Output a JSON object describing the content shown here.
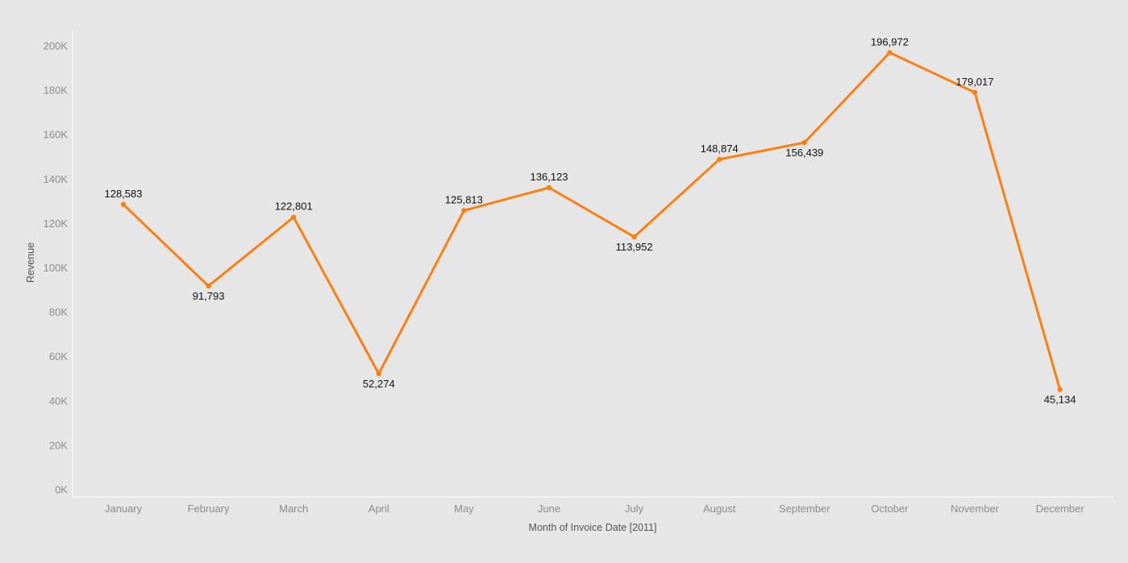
{
  "chart_data": {
    "type": "line",
    "title": "",
    "xlabel": "Month of Invoice Date [2011]",
    "ylabel": "Revenue",
    "categories": [
      "January",
      "February",
      "March",
      "April",
      "May",
      "June",
      "July",
      "August",
      "September",
      "October",
      "November",
      "December"
    ],
    "series": [
      {
        "values": [
          128583,
          91793,
          122801,
          52274,
          125813,
          136123,
          113952,
          148874,
          156439,
          196972,
          179017,
          45134
        ],
        "labels": [
          "128,583",
          "91,793",
          "122,801",
          "52,274",
          "125,813",
          "136,123",
          "113,952",
          "148,874",
          "156,439",
          "196,972",
          "179,017",
          "45,134"
        ],
        "label_positions": [
          "above",
          "below",
          "above",
          "below",
          "above",
          "above",
          "below",
          "above",
          "below",
          "above",
          "above",
          "below"
        ],
        "color": "#ff7f0e"
      }
    ],
    "yticks": [
      {
        "value": 0,
        "label": "0K"
      },
      {
        "value": 20000,
        "label": "20K"
      },
      {
        "value": 40000,
        "label": "40K"
      },
      {
        "value": 60000,
        "label": "60K"
      },
      {
        "value": 80000,
        "label": "80K"
      },
      {
        "value": 100000,
        "label": "100K"
      },
      {
        "value": 120000,
        "label": "120K"
      },
      {
        "value": 140000,
        "label": "140K"
      },
      {
        "value": 160000,
        "label": "160K"
      },
      {
        "value": 180000,
        "label": "180K"
      },
      {
        "value": 200000,
        "label": "200K"
      }
    ],
    "ylim": [
      0,
      200000
    ],
    "grid": false,
    "legend": "none",
    "colors": {
      "background": "#e6e6e6",
      "axis_line": "#f5f5f5",
      "tick_text": "#8c8c8c",
      "title_text": "#555555",
      "label_text": "#111111"
    }
  }
}
